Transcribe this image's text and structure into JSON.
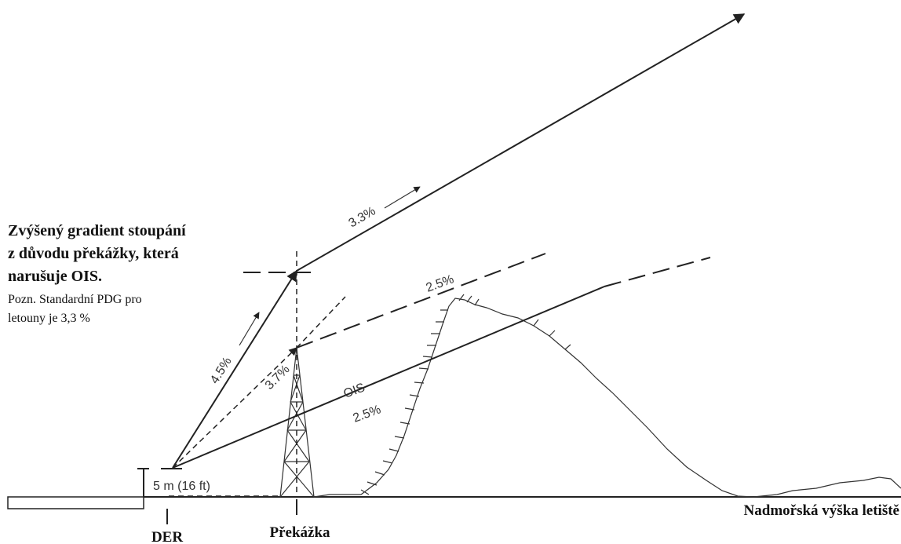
{
  "heading": {
    "lines": [
      "Zvýšený gradient stoupání",
      "z důvodu překážky, která",
      "narušuje OIS."
    ]
  },
  "note": {
    "lines": [
      "Pozn. Standardní PDG pro",
      "letouny je 3,3 %"
    ]
  },
  "labels": {
    "climb_final": "3.3%",
    "obstacle_surface_upper": "2.5%",
    "climb_initial": "4.5%",
    "to_obstacle": "3.7%",
    "ois": "OIS",
    "ois_gradient": "2.5%",
    "height": "5 m (16 ft)",
    "der": "DER",
    "obstacle": "Překážka",
    "aerodrome_elevation": "Nadmořská výška letiště"
  }
}
